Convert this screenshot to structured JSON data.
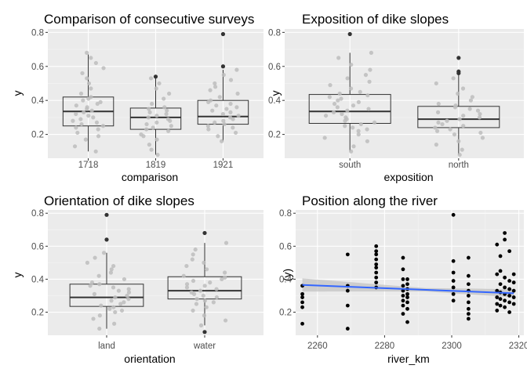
{
  "chart_data": [
    {
      "type": "boxplot",
      "title": "Comparison of consecutive surveys",
      "xlabel": "comparison",
      "ylabel": "y",
      "categories": [
        "1718",
        "1819",
        "1921"
      ],
      "yticks": [
        0.2,
        0.4,
        0.6,
        0.8
      ],
      "ylim": [
        0.06,
        0.82
      ],
      "grid": true,
      "boxes": [
        {
          "min": 0.1,
          "q1": 0.25,
          "median": 0.335,
          "q3": 0.42,
          "max": 0.67,
          "outliers": []
        },
        {
          "min": 0.08,
          "q1": 0.23,
          "median": 0.3,
          "q3": 0.355,
          "max": 0.53,
          "outliers": [
            0.54
          ]
        },
        {
          "min": 0.16,
          "q1": 0.26,
          "median": 0.305,
          "q3": 0.4,
          "max": 0.58,
          "outliers": [
            0.6,
            0.79
          ]
        }
      ],
      "points": [
        [
          0.1,
          0.13,
          0.17,
          0.19,
          0.21,
          0.23,
          0.24,
          0.25,
          0.26,
          0.27,
          0.28,
          0.29,
          0.3,
          0.31,
          0.32,
          0.33,
          0.34,
          0.35,
          0.36,
          0.37,
          0.38,
          0.39,
          0.4,
          0.41,
          0.42,
          0.44,
          0.47,
          0.5,
          0.53,
          0.56,
          0.59,
          0.62,
          0.65,
          0.68
        ],
        [
          0.08,
          0.11,
          0.14,
          0.17,
          0.19,
          0.2,
          0.22,
          0.23,
          0.24,
          0.25,
          0.26,
          0.27,
          0.28,
          0.29,
          0.3,
          0.31,
          0.32,
          0.33,
          0.34,
          0.35,
          0.36,
          0.38,
          0.41,
          0.44,
          0.47,
          0.5,
          0.53
        ],
        [
          0.16,
          0.19,
          0.21,
          0.23,
          0.24,
          0.25,
          0.26,
          0.27,
          0.28,
          0.29,
          0.3,
          0.31,
          0.32,
          0.33,
          0.34,
          0.35,
          0.36,
          0.37,
          0.38,
          0.39,
          0.4,
          0.42,
          0.44,
          0.46,
          0.48,
          0.5,
          0.52,
          0.55,
          0.58
        ]
      ]
    },
    {
      "type": "boxplot",
      "title": "Exposition of dike slopes",
      "xlabel": "exposition",
      "ylabel": "y",
      "categories": [
        "south",
        "north"
      ],
      "yticks": [
        0.2,
        0.4,
        0.6,
        0.8
      ],
      "ylim": [
        0.06,
        0.82
      ],
      "grid": true,
      "boxes": [
        {
          "min": 0.1,
          "q1": 0.265,
          "median": 0.335,
          "q3": 0.435,
          "max": 0.68,
          "outliers": [
            0.79
          ]
        },
        {
          "min": 0.08,
          "q1": 0.24,
          "median": 0.29,
          "q3": 0.365,
          "max": 0.55,
          "outliers": [
            0.56,
            0.57,
            0.65
          ]
        }
      ],
      "points": [
        [
          0.1,
          0.13,
          0.16,
          0.18,
          0.2,
          0.22,
          0.23,
          0.24,
          0.25,
          0.26,
          0.27,
          0.28,
          0.29,
          0.3,
          0.31,
          0.32,
          0.33,
          0.34,
          0.35,
          0.36,
          0.37,
          0.38,
          0.39,
          0.4,
          0.41,
          0.42,
          0.43,
          0.44,
          0.45,
          0.47,
          0.49,
          0.51,
          0.53,
          0.55,
          0.58,
          0.61,
          0.65,
          0.68
        ],
        [
          0.08,
          0.11,
          0.14,
          0.16,
          0.18,
          0.2,
          0.21,
          0.22,
          0.23,
          0.24,
          0.25,
          0.26,
          0.27,
          0.28,
          0.29,
          0.3,
          0.31,
          0.32,
          0.33,
          0.34,
          0.35,
          0.36,
          0.37,
          0.38,
          0.4,
          0.42,
          0.44,
          0.47,
          0.5,
          0.53
        ]
      ]
    },
    {
      "type": "boxplot",
      "title": "Orientation of dike slopes",
      "xlabel": "orientation",
      "ylabel": "y",
      "categories": [
        "land",
        "water"
      ],
      "yticks": [
        0.2,
        0.4,
        0.6,
        0.8
      ],
      "ylim": [
        0.06,
        0.82
      ],
      "grid": true,
      "boxes": [
        {
          "min": 0.1,
          "q1": 0.235,
          "median": 0.29,
          "q3": 0.37,
          "max": 0.56,
          "outliers": [
            0.64,
            0.79
          ]
        },
        {
          "min": 0.12,
          "q1": 0.28,
          "median": 0.33,
          "q3": 0.415,
          "max": 0.62,
          "outliers": [
            0.08,
            0.68
          ]
        }
      ],
      "points": [
        [
          0.1,
          0.13,
          0.16,
          0.18,
          0.2,
          0.21,
          0.22,
          0.23,
          0.24,
          0.25,
          0.26,
          0.27,
          0.28,
          0.29,
          0.3,
          0.31,
          0.32,
          0.33,
          0.34,
          0.35,
          0.36,
          0.37,
          0.38,
          0.4,
          0.42,
          0.44,
          0.46,
          0.48,
          0.5,
          0.53,
          0.56
        ],
        [
          0.12,
          0.15,
          0.18,
          0.21,
          0.23,
          0.25,
          0.26,
          0.27,
          0.28,
          0.29,
          0.3,
          0.31,
          0.32,
          0.33,
          0.34,
          0.35,
          0.36,
          0.37,
          0.38,
          0.39,
          0.4,
          0.41,
          0.42,
          0.44,
          0.46,
          0.48,
          0.5,
          0.52,
          0.55,
          0.58,
          0.62
        ]
      ]
    },
    {
      "type": "scatter",
      "title": "Position along the river",
      "xlabel": "river_km",
      "ylabel": "(y)",
      "xticks": [
        2260,
        2280,
        2300,
        2320
      ],
      "yticks": [
        0.2,
        0.4,
        0.6,
        0.8
      ],
      "xlim": [
        2253.5,
        2321.5
      ],
      "ylim": [
        0.06,
        0.82
      ],
      "grid": true,
      "x": [
        2255.5,
        2255.5,
        2255.5,
        2255.5,
        2255.5,
        2255.5,
        2269,
        2269,
        2269,
        2269,
        2269,
        2277.5,
        2277.5,
        2277.5,
        2277.5,
        2277.5,
        2277.5,
        2277.5,
        2277.5,
        2277.5,
        2277.5,
        2285.5,
        2285.5,
        2285.5,
        2285.5,
        2285.5,
        2285.5,
        2285.5,
        2285.5,
        2285.5,
        2286.8,
        2286.8,
        2286.8,
        2286.8,
        2286.8,
        2286.8,
        2286.8,
        2286.8,
        2300.5,
        2300.5,
        2300.5,
        2300.5,
        2300.5,
        2300.5,
        2300.5,
        2305,
        2305,
        2305,
        2305,
        2305,
        2305,
        2305,
        2305,
        2305,
        2313.5,
        2313.5,
        2313.5,
        2313.5,
        2313.5,
        2313.5,
        2314.5,
        2314.5,
        2314.5,
        2314.5,
        2314.5,
        2314.5,
        2315.8,
        2315.8,
        2315.8,
        2315.8,
        2315.8,
        2315.8,
        2315.8,
        2317.2,
        2317.2,
        2317.2,
        2317.2,
        2317.2,
        2317.2,
        2318.5,
        2318.5,
        2318.5,
        2318.5,
        2318.5
      ],
      "y": [
        0.13,
        0.23,
        0.26,
        0.29,
        0.31,
        0.36,
        0.1,
        0.24,
        0.33,
        0.36,
        0.55,
        0.35,
        0.38,
        0.41,
        0.44,
        0.47,
        0.49,
        0.52,
        0.55,
        0.57,
        0.6,
        0.19,
        0.24,
        0.27,
        0.3,
        0.33,
        0.36,
        0.4,
        0.46,
        0.53,
        0.14,
        0.22,
        0.26,
        0.29,
        0.31,
        0.34,
        0.37,
        0.4,
        0.27,
        0.31,
        0.35,
        0.39,
        0.44,
        0.51,
        0.79,
        0.16,
        0.19,
        0.22,
        0.26,
        0.3,
        0.33,
        0.37,
        0.42,
        0.53,
        0.21,
        0.25,
        0.29,
        0.33,
        0.43,
        0.61,
        0.24,
        0.28,
        0.32,
        0.37,
        0.45,
        0.54,
        0.23,
        0.27,
        0.31,
        0.35,
        0.41,
        0.64,
        0.68,
        0.2,
        0.26,
        0.3,
        0.34,
        0.39,
        0.57,
        0.25,
        0.29,
        0.33,
        0.38,
        0.43
      ],
      "fit": {
        "x": [
          2255.5,
          2318.5
        ],
        "y": [
          0.365,
          0.315
        ],
        "se_upper": [
          0.405,
          0.345
        ],
        "se_lower": [
          0.325,
          0.285
        ],
        "center": 2292
      }
    }
  ],
  "colors": {
    "panel": "#ebebeb",
    "grid_major": "#ffffff",
    "grid_minor": "#f5f5f5",
    "jitter": "#bdbdbd",
    "point": "#000000",
    "fit": "#3366ff",
    "ribbon": "#c0c0c0"
  }
}
